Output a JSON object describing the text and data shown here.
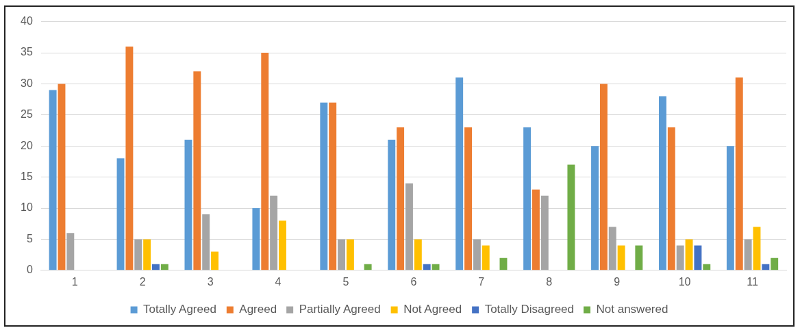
{
  "chart_data": {
    "type": "bar",
    "categories": [
      "1",
      "2",
      "3",
      "4",
      "5",
      "6",
      "7",
      "8",
      "9",
      "10",
      "11"
    ],
    "series": [
      {
        "name": "Totally Agreed",
        "color": "#5b9bd5",
        "values": [
          29,
          18,
          21,
          10,
          27,
          21,
          31,
          23,
          20,
          28,
          20
        ]
      },
      {
        "name": "Agreed",
        "color": "#ed7d31",
        "values": [
          30,
          36,
          32,
          35,
          27,
          23,
          23,
          13,
          30,
          23,
          31
        ]
      },
      {
        "name": "Partially Agreed",
        "color": "#a5a5a5",
        "values": [
          6,
          5,
          9,
          12,
          5,
          14,
          5,
          12,
          7,
          4,
          5
        ]
      },
      {
        "name": "Not Agreed",
        "color": "#ffc000",
        "values": [
          0,
          5,
          3,
          8,
          5,
          5,
          4,
          0,
          4,
          5,
          7
        ]
      },
      {
        "name": "Totally Disagreed",
        "color": "#4472c4",
        "values": [
          0,
          1,
          0,
          0,
          0,
          1,
          0,
          0,
          0,
          4,
          1
        ]
      },
      {
        "name": "Not answered",
        "color": "#70ad47",
        "values": [
          0,
          1,
          0,
          0,
          1,
          1,
          2,
          17,
          4,
          1,
          2
        ]
      }
    ],
    "ylim": [
      0,
      40
    ],
    "yticks": [
      0,
      5,
      10,
      15,
      20,
      25,
      30,
      35,
      40
    ],
    "grid": "y",
    "legend": "bottom"
  }
}
